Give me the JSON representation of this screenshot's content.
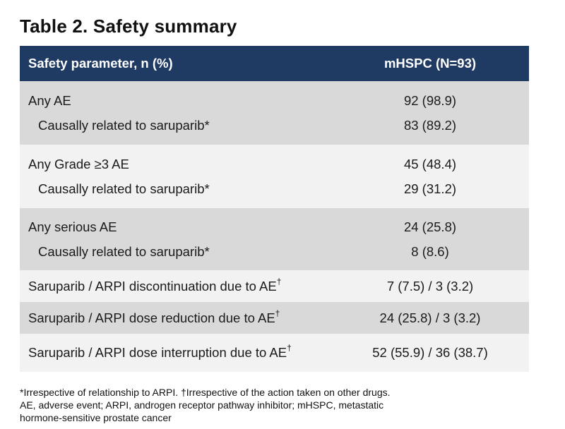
{
  "title": "Table 2. Safety summary",
  "chart_data": {
    "type": "table",
    "columns": [
      "Safety parameter, n (%)",
      "mHSPC (N=93)"
    ],
    "rows": [
      {
        "param": "Any AE",
        "value": "92 (98.9)"
      },
      {
        "param": "Causally related to saruparib*",
        "value": "83 (89.2)",
        "indent": true
      },
      {
        "param": "Any Grade ≥3 AE",
        "value": "45 (48.4)"
      },
      {
        "param": "Causally related to saruparib*",
        "value": "29 (31.2)",
        "indent": true
      },
      {
        "param": "Any serious AE",
        "value": "24 (25.8)"
      },
      {
        "param": "Causally related to saruparib*",
        "value": "8 (8.6)",
        "indent": true
      },
      {
        "param": "Saruparib / ARPI discontinuation due to AE",
        "sup": "†",
        "value": "7 (7.5) / 3 (3.2)"
      },
      {
        "param": "Saruparib / ARPI dose reduction due to AE",
        "sup": "†",
        "value": "24 (25.8) / 3 (3.2)"
      },
      {
        "param": "Saruparib / ARPI dose interruption due to AE",
        "sup": "†",
        "value": "52 (55.9) / 36 (38.7)"
      }
    ]
  },
  "footnote": {
    "line1": "*Irrespective of relationship to ARPI. †Irrespective of the action taken on other drugs.",
    "line2": "AE, adverse event; ARPI, androgen receptor pathway inhibitor; mHSPC, metastatic",
    "line3": "hormone-sensitive prostate cancer"
  }
}
